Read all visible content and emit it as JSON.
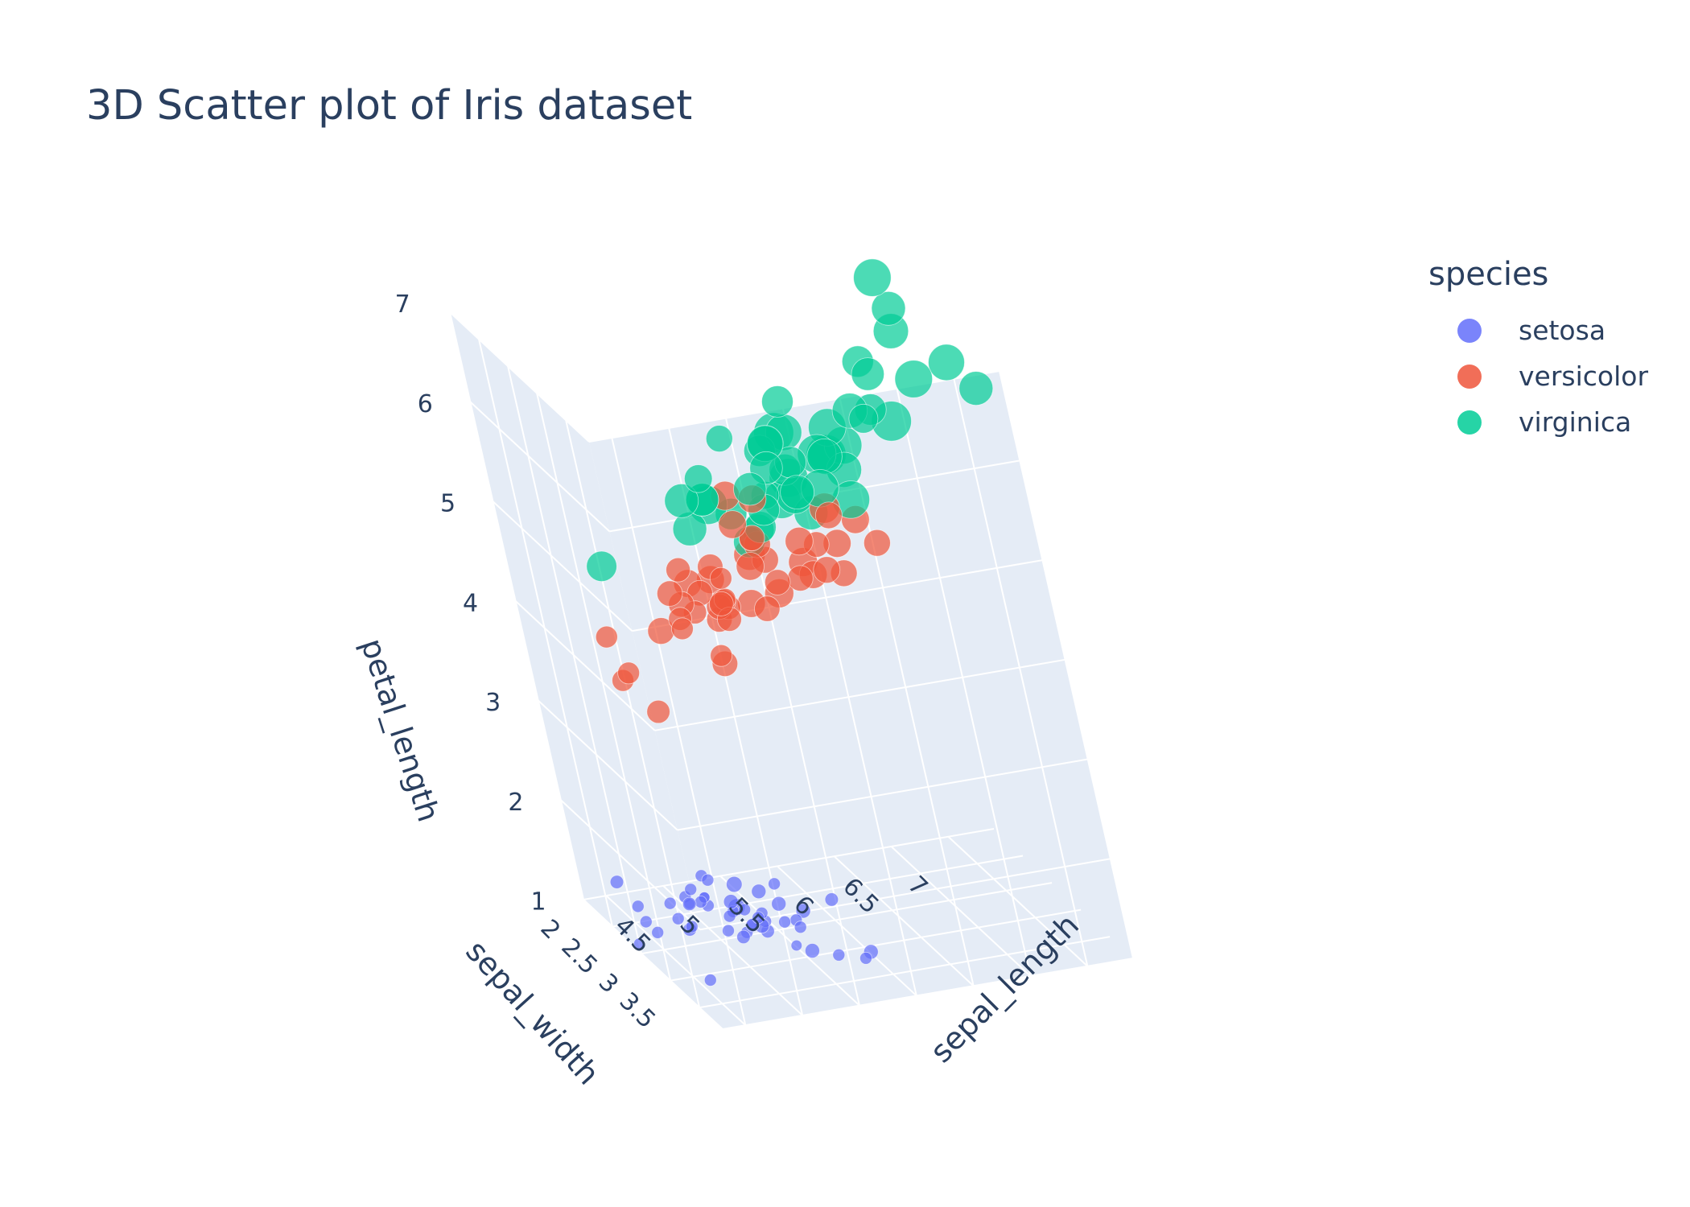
{
  "title": "3D Scatter plot of Iris dataset",
  "legend": {
    "title": "species",
    "items": [
      {
        "label": "setosa",
        "color": "#636efa"
      },
      {
        "label": "versicolor",
        "color": "#EF553B"
      },
      {
        "label": "virginica",
        "color": "#00cc96"
      }
    ]
  },
  "chart_data": {
    "type": "scatter",
    "mode": "3d",
    "title": "3D Scatter plot of Iris dataset",
    "axes": {
      "x": {
        "label": "sepal_length",
        "ticks": [
          "4.5",
          "5",
          "5.5",
          "6",
          "6.5",
          "7"
        ]
      },
      "y": {
        "label": "sepal_width",
        "ticks": [
          "2",
          "2.5",
          "3",
          "3.5"
        ]
      },
      "z": {
        "label": "petal_length",
        "ticks": [
          "1",
          "2",
          "3",
          "4",
          "5",
          "6",
          "7"
        ]
      }
    },
    "marker_size": "petal_width",
    "background": "#E5ECF6",
    "series": [
      {
        "name": "setosa",
        "color": "#636efa",
        "points": [
          [
            5.1,
            3.5,
            1.4,
            0.2
          ],
          [
            4.9,
            3.0,
            1.4,
            0.2
          ],
          [
            4.7,
            3.2,
            1.3,
            0.2
          ],
          [
            4.6,
            3.1,
            1.5,
            0.2
          ],
          [
            5.0,
            3.6,
            1.4,
            0.2
          ],
          [
            5.4,
            3.9,
            1.7,
            0.4
          ],
          [
            4.6,
            3.4,
            1.4,
            0.3
          ],
          [
            5.0,
            3.4,
            1.5,
            0.2
          ],
          [
            4.4,
            2.9,
            1.4,
            0.2
          ],
          [
            4.9,
            3.1,
            1.5,
            0.1
          ],
          [
            5.4,
            3.7,
            1.5,
            0.2
          ],
          [
            4.8,
            3.4,
            1.6,
            0.2
          ],
          [
            4.8,
            3.0,
            1.4,
            0.1
          ],
          [
            4.3,
            3.0,
            1.1,
            0.1
          ],
          [
            5.8,
            4.0,
            1.2,
            0.2
          ],
          [
            5.7,
            4.4,
            1.5,
            0.4
          ],
          [
            5.4,
            3.9,
            1.3,
            0.4
          ],
          [
            5.1,
            3.5,
            1.4,
            0.3
          ],
          [
            5.7,
            3.8,
            1.7,
            0.3
          ],
          [
            5.1,
            3.8,
            1.5,
            0.3
          ],
          [
            5.4,
            3.4,
            1.7,
            0.2
          ],
          [
            5.1,
            3.7,
            1.5,
            0.4
          ],
          [
            4.6,
            3.6,
            1.0,
            0.2
          ],
          [
            5.1,
            3.3,
            1.7,
            0.5
          ],
          [
            4.8,
            3.4,
            1.9,
            0.2
          ],
          [
            5.0,
            3.0,
            1.6,
            0.2
          ],
          [
            5.0,
            3.4,
            1.6,
            0.4
          ],
          [
            5.2,
            3.5,
            1.5,
            0.2
          ],
          [
            5.2,
            3.4,
            1.4,
            0.2
          ],
          [
            4.7,
            3.2,
            1.6,
            0.2
          ],
          [
            4.8,
            3.1,
            1.6,
            0.2
          ],
          [
            5.4,
            3.4,
            1.5,
            0.4
          ],
          [
            5.2,
            4.1,
            1.5,
            0.1
          ],
          [
            5.5,
            4.2,
            1.4,
            0.2
          ],
          [
            4.9,
            3.1,
            1.5,
            0.1
          ],
          [
            5.0,
            3.2,
            1.2,
            0.2
          ],
          [
            5.5,
            3.5,
            1.3,
            0.2
          ],
          [
            4.4,
            3.0,
            1.3,
            0.2
          ],
          [
            5.1,
            3.4,
            1.5,
            0.2
          ],
          [
            5.0,
            3.5,
            1.3,
            0.3
          ],
          [
            4.5,
            2.3,
            1.3,
            0.3
          ],
          [
            4.4,
            3.2,
            1.3,
            0.2
          ],
          [
            5.0,
            3.5,
            1.6,
            0.6
          ],
          [
            5.1,
            3.8,
            1.9,
            0.4
          ],
          [
            4.8,
            3.0,
            1.4,
            0.3
          ],
          [
            5.1,
            3.8,
            1.6,
            0.2
          ],
          [
            4.6,
            3.2,
            1.4,
            0.2
          ],
          [
            5.3,
            3.7,
            1.5,
            0.2
          ],
          [
            5.0,
            3.3,
            1.4,
            0.2
          ]
        ]
      },
      {
        "name": "versicolor",
        "color": "#EF553B",
        "points": [
          [
            7.0,
            3.2,
            4.7,
            1.4
          ],
          [
            6.4,
            3.2,
            4.5,
            1.5
          ],
          [
            6.9,
            3.1,
            4.9,
            1.5
          ],
          [
            5.5,
            2.3,
            4.0,
            1.3
          ],
          [
            6.5,
            2.8,
            4.6,
            1.5
          ],
          [
            5.7,
            2.8,
            4.5,
            1.3
          ],
          [
            6.3,
            3.3,
            4.7,
            1.6
          ],
          [
            4.9,
            2.4,
            3.3,
            1.0
          ],
          [
            6.6,
            2.9,
            4.6,
            1.3
          ],
          [
            5.2,
            2.7,
            3.9,
            1.4
          ],
          [
            5.0,
            2.0,
            3.5,
            1.0
          ],
          [
            5.9,
            3.0,
            4.2,
            1.5
          ],
          [
            6.0,
            2.2,
            4.0,
            1.0
          ],
          [
            6.1,
            2.9,
            4.7,
            1.4
          ],
          [
            5.6,
            2.9,
            3.6,
            1.3
          ],
          [
            6.7,
            3.1,
            4.4,
            1.4
          ],
          [
            5.6,
            3.0,
            4.5,
            1.5
          ],
          [
            5.8,
            2.7,
            4.1,
            1.0
          ],
          [
            6.2,
            2.2,
            4.5,
            1.5
          ],
          [
            5.6,
            2.5,
            3.9,
            1.1
          ],
          [
            5.9,
            3.2,
            4.8,
            1.8
          ],
          [
            6.1,
            2.8,
            4.0,
            1.3
          ],
          [
            6.3,
            2.5,
            4.9,
            1.5
          ],
          [
            6.1,
            2.8,
            4.7,
            1.2
          ],
          [
            6.4,
            2.9,
            4.3,
            1.3
          ],
          [
            6.6,
            3.0,
            4.4,
            1.4
          ],
          [
            6.8,
            2.8,
            4.8,
            1.4
          ],
          [
            6.7,
            3.0,
            5.0,
            1.7
          ],
          [
            6.0,
            2.9,
            4.5,
            1.5
          ],
          [
            5.7,
            2.6,
            3.5,
            1.0
          ],
          [
            5.5,
            2.4,
            3.8,
            1.1
          ],
          [
            5.5,
            2.4,
            3.7,
            1.0
          ],
          [
            5.8,
            2.7,
            3.9,
            1.2
          ],
          [
            6.0,
            2.7,
            5.1,
            1.6
          ],
          [
            5.4,
            3.0,
            4.5,
            1.5
          ],
          [
            6.0,
            3.4,
            4.5,
            1.6
          ],
          [
            6.7,
            3.1,
            4.7,
            1.5
          ],
          [
            6.3,
            2.3,
            4.4,
            1.3
          ],
          [
            5.6,
            3.0,
            4.1,
            1.3
          ],
          [
            5.5,
            2.5,
            4.0,
            1.3
          ],
          [
            5.5,
            2.6,
            4.4,
            1.2
          ],
          [
            6.1,
            3.0,
            4.6,
            1.4
          ],
          [
            5.8,
            2.6,
            4.0,
            1.2
          ],
          [
            5.0,
            2.3,
            3.3,
            1.0
          ],
          [
            5.6,
            2.7,
            4.2,
            1.3
          ],
          [
            5.7,
            3.0,
            4.2,
            1.2
          ],
          [
            5.7,
            2.9,
            4.2,
            1.3
          ],
          [
            6.2,
            2.9,
            4.3,
            1.3
          ],
          [
            5.1,
            2.5,
            3.0,
            1.1
          ],
          [
            5.7,
            2.8,
            4.1,
            1.3
          ]
        ]
      },
      {
        "name": "virginica",
        "color": "#00cc96",
        "points": [
          [
            6.3,
            3.3,
            6.0,
            2.5
          ],
          [
            5.8,
            2.7,
            5.1,
            1.9
          ],
          [
            7.1,
            3.0,
            5.9,
            2.1
          ],
          [
            6.3,
            2.9,
            5.6,
            1.8
          ],
          [
            6.5,
            3.0,
            5.8,
            2.2
          ],
          [
            7.6,
            3.0,
            6.6,
            2.1
          ],
          [
            4.9,
            2.5,
            4.5,
            1.7
          ],
          [
            7.3,
            2.9,
            6.3,
            1.8
          ],
          [
            6.7,
            2.5,
            5.8,
            1.8
          ],
          [
            7.2,
            3.6,
            6.1,
            2.5
          ],
          [
            6.5,
            3.2,
            5.1,
            2.0
          ],
          [
            6.4,
            2.7,
            5.3,
            1.9
          ],
          [
            6.8,
            3.0,
            5.5,
            2.1
          ],
          [
            5.7,
            2.5,
            5.0,
            2.0
          ],
          [
            5.8,
            2.8,
            5.1,
            2.4
          ],
          [
            6.4,
            3.2,
            5.3,
            2.3
          ],
          [
            6.5,
            3.0,
            5.5,
            1.8
          ],
          [
            7.7,
            3.8,
            6.7,
            2.2
          ],
          [
            7.7,
            2.6,
            6.9,
            2.3
          ],
          [
            6.0,
            2.2,
            5.0,
            1.5
          ],
          [
            6.9,
            3.2,
            5.7,
            2.3
          ],
          [
            5.6,
            2.8,
            4.9,
            2.0
          ],
          [
            7.7,
            2.8,
            6.7,
            2.0
          ],
          [
            6.3,
            2.7,
            4.9,
            1.8
          ],
          [
            6.7,
            3.3,
            5.7,
            2.1
          ],
          [
            7.2,
            3.2,
            6.0,
            1.8
          ],
          [
            6.2,
            2.8,
            4.8,
            1.8
          ],
          [
            6.1,
            3.0,
            4.9,
            1.8
          ],
          [
            6.4,
            2.8,
            5.6,
            2.1
          ],
          [
            7.2,
            3.0,
            5.8,
            1.6
          ],
          [
            7.4,
            2.8,
            6.1,
            1.9
          ],
          [
            7.9,
            3.8,
            6.4,
            2.0
          ],
          [
            6.4,
            2.8,
            5.6,
            2.2
          ],
          [
            6.3,
            2.8,
            5.1,
            1.5
          ],
          [
            6.1,
            2.6,
            5.6,
            1.4
          ],
          [
            7.7,
            3.0,
            6.1,
            2.3
          ],
          [
            6.3,
            3.4,
            5.6,
            2.4
          ],
          [
            6.4,
            3.1,
            5.5,
            1.8
          ],
          [
            6.0,
            3.0,
            4.8,
            1.8
          ],
          [
            6.9,
            3.1,
            5.4,
            2.1
          ],
          [
            6.7,
            3.1,
            5.6,
            2.4
          ],
          [
            6.9,
            3.1,
            5.1,
            2.3
          ],
          [
            5.8,
            2.7,
            5.1,
            1.9
          ],
          [
            6.8,
            3.2,
            5.9,
            2.3
          ],
          [
            6.7,
            3.3,
            5.7,
            2.5
          ],
          [
            6.7,
            3.0,
            5.2,
            2.3
          ],
          [
            6.3,
            2.5,
            5.0,
            1.9
          ],
          [
            6.5,
            3.0,
            5.2,
            2.0
          ],
          [
            6.2,
            3.4,
            5.4,
            2.3
          ],
          [
            5.9,
            3.0,
            5.1,
            1.8
          ]
        ]
      }
    ]
  }
}
